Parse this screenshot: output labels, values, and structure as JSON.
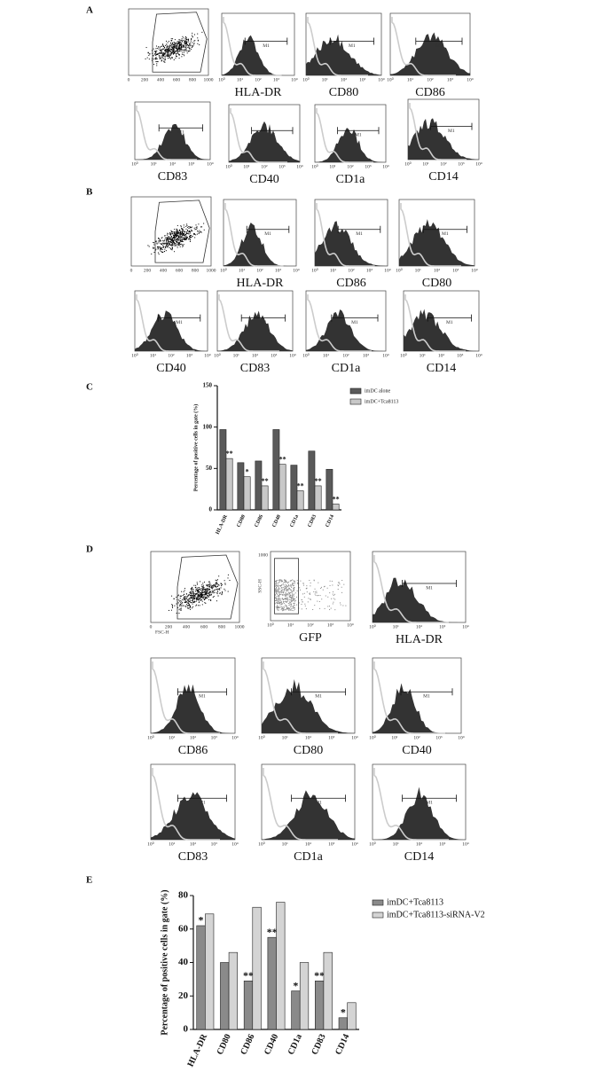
{
  "figure_labels": [
    "A",
    "B",
    "C",
    "D",
    "E"
  ],
  "flow": {
    "A": [
      "HLA-DR",
      "CD80",
      "CD86",
      "CD83",
      "CD40",
      "CD1a",
      "CD14"
    ],
    "B": [
      "HLA-DR",
      "CD86",
      "CD80",
      "CD40",
      "CD83",
      "CD1a",
      "CD14"
    ],
    "D": [
      "GFP",
      "HLA-DR",
      "CD86",
      "CD80",
      "CD40",
      "CD83",
      "CD1a",
      "CD14"
    ],
    "gate": "M1",
    "log_ticks": [
      "10⁰",
      "10¹",
      "10²",
      "10³",
      "10⁴"
    ],
    "linear_ticks": [
      "0",
      "200",
      "400",
      "600",
      "800",
      "1000"
    ],
    "fsc": "FSC-H",
    "ssc": "SSC-H",
    "ssc_max": "1000"
  },
  "chart_data": [
    {
      "type": "bar",
      "ylabel": "Percentage of positive cells in gate (%)",
      "categories": [
        "HLA-DR",
        "CD80",
        "CD86",
        "CD40",
        "CD1a",
        "CD83",
        "CD14"
      ],
      "series": [
        {
          "name": "imDC alone",
          "color": "#5a5a5a",
          "values": [
            97,
            57,
            59,
            97,
            54,
            71,
            49
          ]
        },
        {
          "name": "imDC+Tca8113",
          "color": "#c8c8c8",
          "values": [
            62,
            40,
            29,
            55,
            23,
            29,
            7
          ]
        }
      ],
      "annotations": [
        "**",
        "*",
        "**",
        "**",
        "**",
        "**",
        "**"
      ],
      "annotation_series": 1,
      "ylim": [
        0,
        150
      ],
      "yticks": [
        0,
        50,
        100,
        150
      ]
    },
    {
      "type": "bar",
      "ylabel": "Percentage of positive cells in gate (%)",
      "categories": [
        "HLA-DR",
        "CD80",
        "CD86",
        "CD40",
        "CD1a",
        "CD83",
        "CD14"
      ],
      "series": [
        {
          "name": "imDC+Tca8113",
          "color": "#8a8a8a",
          "values": [
            62,
            40,
            29,
            55,
            23,
            29,
            7
          ]
        },
        {
          "name": "imDC+Tca8113-siRNA-V2",
          "color": "#d4d4d4",
          "values": [
            69,
            46,
            73,
            76,
            40,
            46,
            16
          ]
        }
      ],
      "annotations": [
        "*",
        null,
        "**",
        "**",
        "*",
        "**",
        "*"
      ],
      "annotation_series": 0,
      "ylim": [
        0,
        80
      ],
      "yticks": [
        0,
        20,
        40,
        60,
        80
      ]
    }
  ]
}
